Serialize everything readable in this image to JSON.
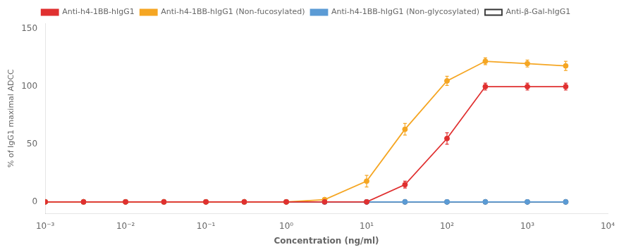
{
  "chart_data": {
    "type": "line",
    "xlabel": "Concentration (ng/ml)",
    "ylabel": "% of IgG1 maximal ADCC",
    "log": "x",
    "grid": false,
    "legend": "top",
    "xlim": [
      0.001,
      10000
    ],
    "xticks": [
      {
        "value": 0.001,
        "label": "10⁻³"
      },
      {
        "value": 0.01,
        "label": "10⁻²"
      },
      {
        "value": 0.1,
        "label": "10⁻¹"
      },
      {
        "value": 1,
        "label": "10⁰"
      },
      {
        "value": 10,
        "label": "10¹"
      },
      {
        "value": 100,
        "label": "10²"
      },
      {
        "value": 1000,
        "label": "10³"
      },
      {
        "value": 10000,
        "label": "10⁴"
      }
    ],
    "ylim": [
      -10,
      155
    ],
    "yticks": [
      0,
      50,
      100,
      150
    ],
    "x": [
      0.001,
      0.003,
      0.01,
      0.03,
      0.1,
      0.3,
      1.0,
      3.0,
      10,
      30,
      100,
      300,
      1000,
      3000
    ],
    "series": [
      {
        "name": "Anti-h4-1BB-hIgG1",
        "color": "#e03030",
        "marker": "circle",
        "line_style": "solid",
        "values": [
          0,
          0,
          0,
          0,
          0,
          0,
          0,
          0,
          0,
          15,
          55,
          100,
          100,
          100
        ],
        "yerr": [
          0.5,
          0.5,
          0.5,
          0.5,
          0.5,
          0.5,
          0.5,
          0.5,
          1,
          3,
          5,
          3,
          3,
          3
        ]
      },
      {
        "name": "Anti-h4-1BB-hIgG1 (Non-fucosylated)",
        "color": "#f5a623",
        "marker": "circle",
        "line_style": "solid",
        "values": [
          0,
          0,
          0,
          0,
          0,
          0,
          0,
          2,
          18,
          63,
          105,
          122,
          120,
          118
        ],
        "yerr": [
          0.5,
          0.5,
          0.5,
          0.5,
          0.5,
          0.5,
          0.5,
          1,
          5,
          5,
          4,
          3,
          3,
          4
        ]
      },
      {
        "name": "Anti-h4-1BB-hIgG1 (Non-glycosylated)",
        "color": "#5b9bd5",
        "marker": "circle",
        "line_style": "solid",
        "values": [
          0,
          0,
          0,
          0,
          0,
          0,
          0,
          0,
          0,
          0,
          0,
          0,
          0,
          0
        ],
        "yerr": [
          0.5,
          0.5,
          0.5,
          0.5,
          0.5,
          0.5,
          0.5,
          0.5,
          0.5,
          0.5,
          0.5,
          0.5,
          0.5,
          0.5
        ]
      },
      {
        "name": "Anti-β-Gal-hIgG1",
        "color": "#333333",
        "marker": "open-circle",
        "line_style": "solid",
        "values": [
          0,
          0,
          0,
          0,
          0,
          0,
          0,
          0,
          0,
          0,
          0,
          0,
          0,
          0
        ],
        "yerr": [
          0.5,
          0.5,
          0.5,
          0.5,
          0.5,
          0.5,
          0.5,
          0.5,
          0.5,
          0.5,
          0.5,
          0.5,
          0.5,
          0.5
        ]
      }
    ]
  }
}
